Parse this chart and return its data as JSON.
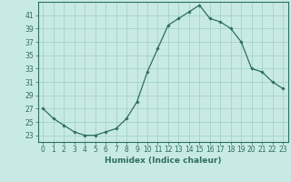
{
  "x": [
    0,
    1,
    2,
    3,
    4,
    5,
    6,
    7,
    8,
    9,
    10,
    11,
    12,
    13,
    14,
    15,
    16,
    17,
    18,
    19,
    20,
    21,
    22,
    23
  ],
  "y": [
    27,
    25.5,
    24.5,
    23.5,
    23,
    23,
    23.5,
    24,
    25.5,
    28,
    32.5,
    36,
    39.5,
    40.5,
    41.5,
    42.5,
    40.5,
    40,
    39,
    37,
    33,
    32.5,
    31,
    30
  ],
  "line_color": "#2e6e62",
  "marker": "D",
  "marker_size": 1.8,
  "bg_color": "#c8eae4",
  "grid_color": "#9ecec6",
  "xlabel": "Humidex (Indice chaleur)",
  "ylim": [
    22,
    43
  ],
  "xlim": [
    -0.5,
    23.5
  ],
  "yticks": [
    23,
    25,
    27,
    29,
    31,
    33,
    35,
    37,
    39,
    41
  ],
  "xticks": [
    0,
    1,
    2,
    3,
    4,
    5,
    6,
    7,
    8,
    9,
    10,
    11,
    12,
    13,
    14,
    15,
    16,
    17,
    18,
    19,
    20,
    21,
    22,
    23
  ],
  "xlabel_fontsize": 6.5,
  "tick_fontsize": 5.5,
  "label_color": "#2e6e62",
  "linewidth": 0.9
}
